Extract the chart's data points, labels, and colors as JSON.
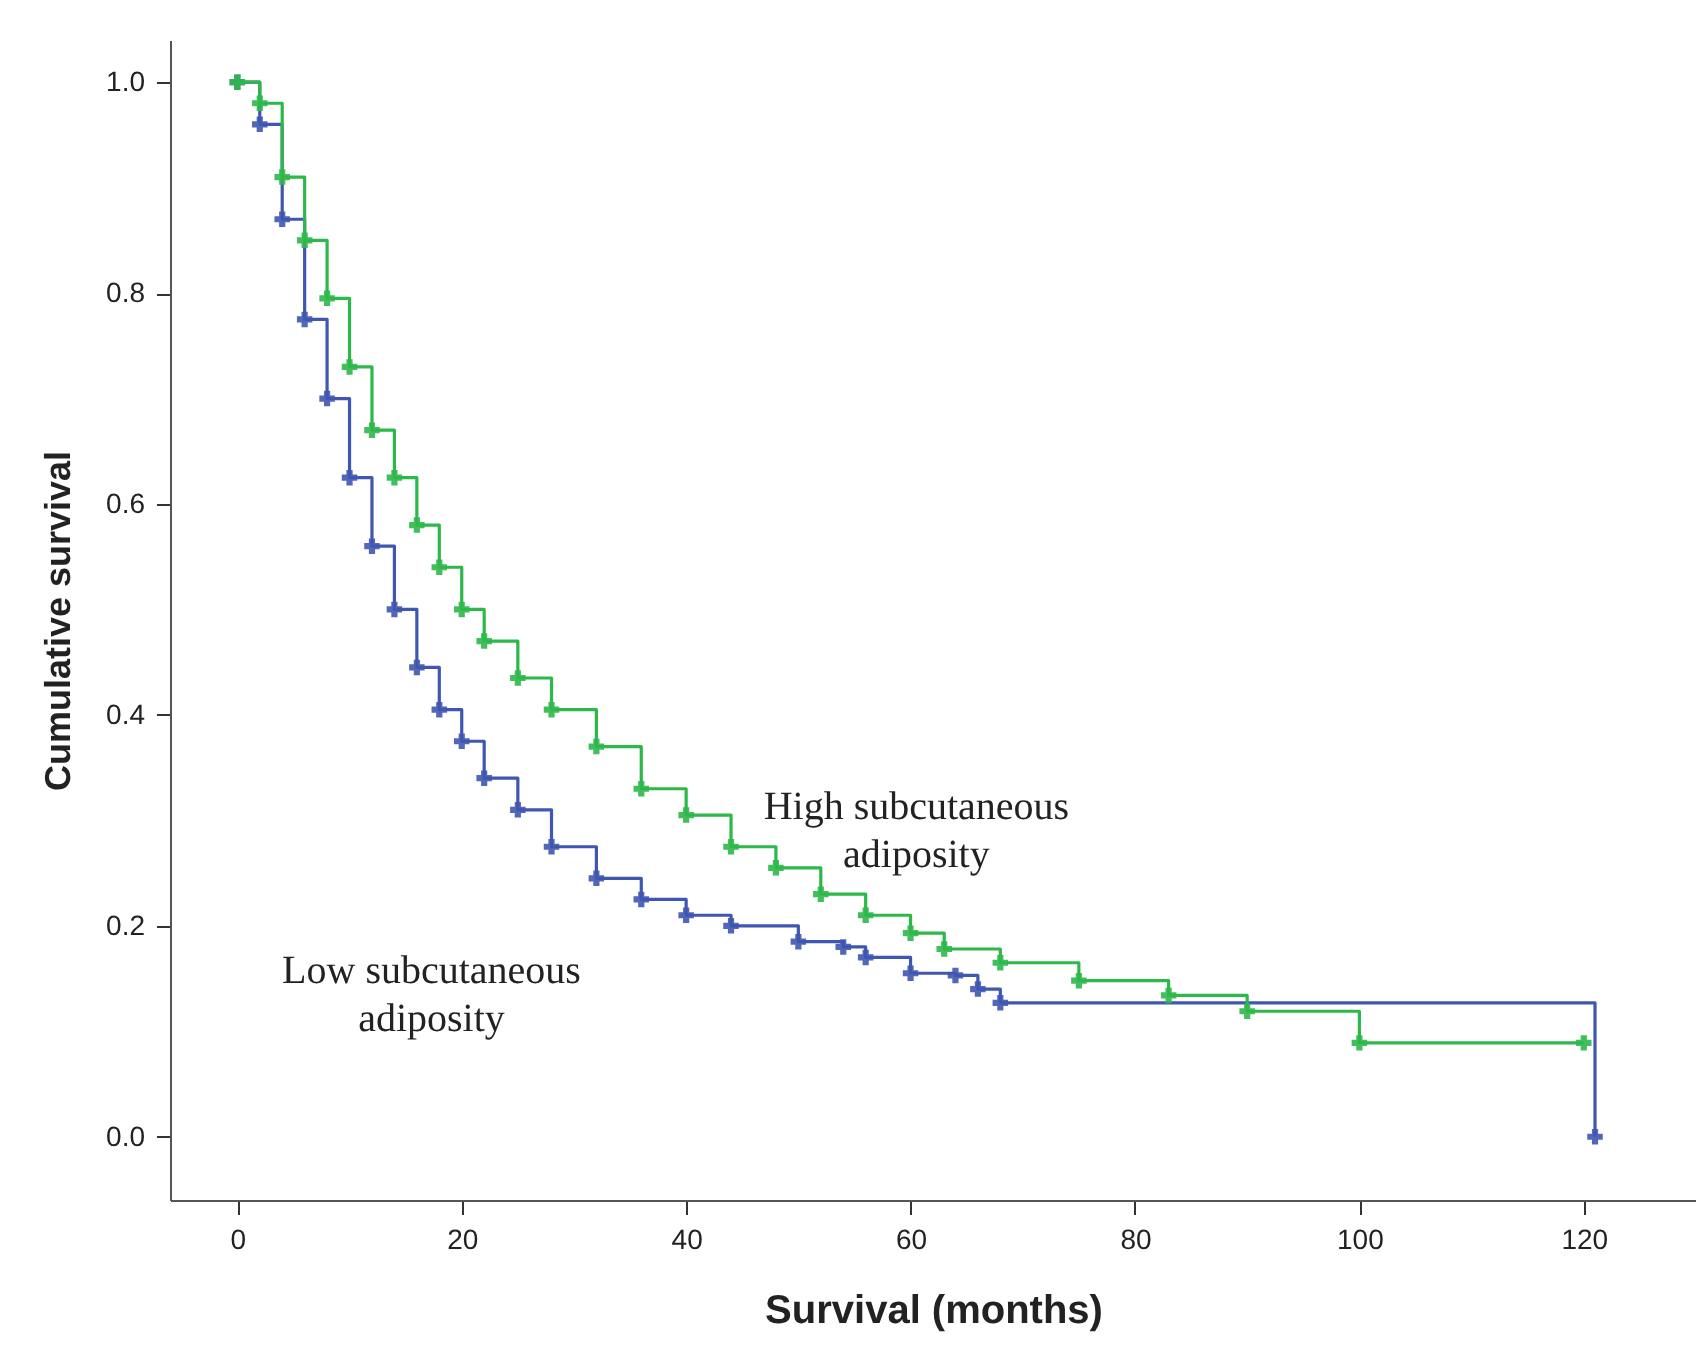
{
  "chart_data": {
    "type": "step",
    "xlabel": "Survival (months)",
    "ylabel": "Cumulative survival",
    "marker": "cross",
    "grid": false,
    "xlim": [
      -6,
      130
    ],
    "ylim": [
      -0.06,
      1.04
    ],
    "xticks": [
      0,
      20,
      40,
      60,
      80,
      100,
      120
    ],
    "yticks": [
      {
        "value": 0,
        "label": "0.0"
      },
      {
        "value": 0.2,
        "label": "0.2"
      },
      {
        "value": 0.4,
        "label": "0.4"
      },
      {
        "value": 0.6,
        "label": "0.6"
      },
      {
        "value": 0.8,
        "label": "0.8"
      },
      {
        "value": 1,
        "label": "1.0"
      }
    ],
    "series": [
      {
        "name": "Low subcutaneous adiposity",
        "color": "#3f57b0",
        "x": [
          0,
          2,
          4,
          6,
          8,
          10,
          12,
          14,
          16,
          18,
          20,
          22,
          25,
          28,
          32,
          36,
          40,
          44,
          50,
          54,
          56,
          60,
          64,
          66,
          68,
          121
        ],
        "values": [
          1.0,
          0.96,
          0.87,
          0.775,
          0.7,
          0.625,
          0.56,
          0.5,
          0.445,
          0.405,
          0.375,
          0.34,
          0.31,
          0.275,
          0.245,
          0.225,
          0.21,
          0.2,
          0.185,
          0.18,
          0.17,
          0.155,
          0.153,
          0.14,
          0.127,
          0.0
        ]
      },
      {
        "name": "High subcutaneous adiposity",
        "color": "#2db84a",
        "x": [
          0,
          2,
          4,
          6,
          8,
          10,
          12,
          14,
          16,
          18,
          20,
          22,
          25,
          28,
          32,
          36,
          40,
          44,
          48,
          52,
          56,
          60,
          63,
          68,
          75,
          83,
          90,
          100,
          120
        ],
        "values": [
          1.0,
          0.98,
          0.91,
          0.85,
          0.795,
          0.73,
          0.67,
          0.625,
          0.58,
          0.54,
          0.5,
          0.47,
          0.435,
          0.405,
          0.37,
          0.33,
          0.305,
          0.275,
          0.255,
          0.23,
          0.21,
          0.193,
          0.178,
          0.165,
          0.148,
          0.134,
          0.119,
          0.089,
          0.089
        ]
      }
    ]
  }
}
